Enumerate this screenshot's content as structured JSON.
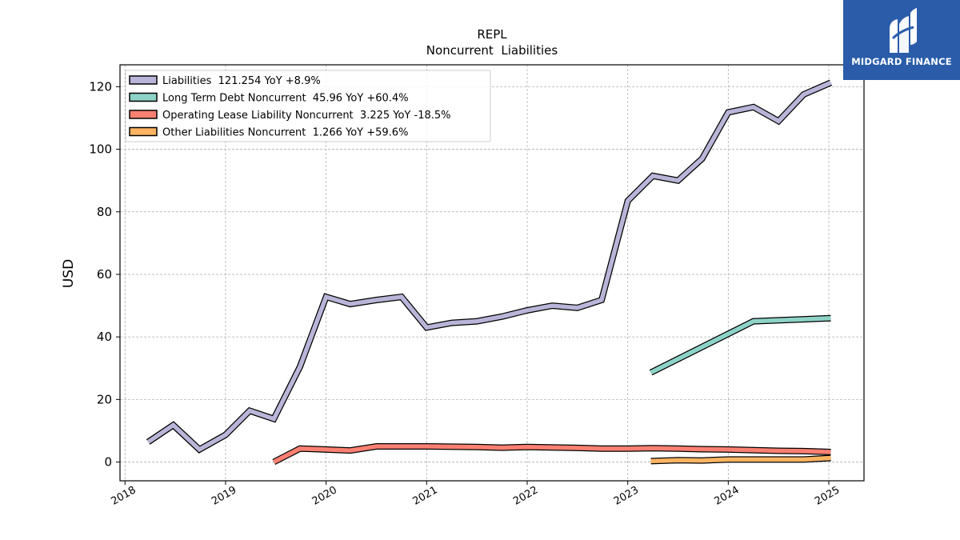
{
  "chart_data": {
    "type": "line",
    "title": "REPL",
    "subtitle": "Noncurrent  Liabilities",
    "ylabel": "USD",
    "xlabel": "",
    "xlim": [
      2017.95,
      2025.35
    ],
    "ylim": [
      -6,
      127
    ],
    "yticks": [
      0,
      20,
      40,
      60,
      80,
      100,
      120
    ],
    "xticks": [
      2018,
      2019,
      2020,
      2021,
      2022,
      2023,
      2024,
      2025
    ],
    "grid": true,
    "legend_position": "top-left",
    "series": [
      {
        "name": "Liabilities  121.254 YoY +8.9%",
        "color": "#b8b5d8",
        "points": [
          [
            2018.23,
            6.4
          ],
          [
            2018.48,
            11.8
          ],
          [
            2018.74,
            4.0
          ],
          [
            2019.0,
            8.7
          ],
          [
            2019.24,
            16.4
          ],
          [
            2019.48,
            13.8
          ],
          [
            2019.74,
            30.5
          ],
          [
            2020.0,
            52.8
          ],
          [
            2020.24,
            50.5
          ],
          [
            2020.5,
            51.8
          ],
          [
            2020.75,
            52.8
          ],
          [
            2021.0,
            43.0
          ],
          [
            2021.25,
            44.5
          ],
          [
            2021.5,
            45.0
          ],
          [
            2021.75,
            46.5
          ],
          [
            2022.0,
            48.5
          ],
          [
            2022.25,
            50.0
          ],
          [
            2022.5,
            49.3
          ],
          [
            2022.74,
            51.8
          ],
          [
            2023.0,
            83.5
          ],
          [
            2023.25,
            91.5
          ],
          [
            2023.5,
            90.0
          ],
          [
            2023.74,
            97.0
          ],
          [
            2024.0,
            111.8
          ],
          [
            2024.25,
            113.5
          ],
          [
            2024.5,
            109.0
          ],
          [
            2024.75,
            117.5
          ],
          [
            2025.02,
            121.3
          ]
        ]
      },
      {
        "name": "Long Term Debt Noncurrent  45.96 YoY +60.4%",
        "color": "#8dd3c7",
        "points": [
          [
            2023.23,
            28.6
          ],
          [
            2024.25,
            45.0
          ],
          [
            2025.02,
            46.0
          ]
        ]
      },
      {
        "name": "Operating Lease Liability Noncurrent  3.225 YoY -18.5%",
        "color": "#fb8072",
        "points": [
          [
            2019.48,
            0.0
          ],
          [
            2019.74,
            4.3
          ],
          [
            2020.0,
            4.0
          ],
          [
            2020.24,
            3.7
          ],
          [
            2020.5,
            5.0
          ],
          [
            2021.0,
            5.0
          ],
          [
            2021.5,
            4.8
          ],
          [
            2021.75,
            4.6
          ],
          [
            2022.0,
            4.8
          ],
          [
            2022.5,
            4.5
          ],
          [
            2022.74,
            4.3
          ],
          [
            2023.0,
            4.3
          ],
          [
            2023.25,
            4.4
          ],
          [
            2023.5,
            4.3
          ],
          [
            2023.74,
            4.1
          ],
          [
            2024.0,
            4.0
          ],
          [
            2024.5,
            3.6
          ],
          [
            2024.75,
            3.5
          ],
          [
            2025.02,
            3.2
          ]
        ]
      },
      {
        "name": "Other Liabilities Noncurrent  1.266 YoY +59.6%",
        "color": "#fdb462",
        "points": [
          [
            2023.23,
            0.3
          ],
          [
            2023.5,
            0.6
          ],
          [
            2023.74,
            0.5
          ],
          [
            2024.0,
            0.8
          ],
          [
            2024.5,
            0.8
          ],
          [
            2024.75,
            0.8
          ],
          [
            2025.02,
            1.3
          ]
        ]
      }
    ]
  },
  "logo": {
    "text": "MIDGARD FINANCE",
    "color": "#2a5caa"
  }
}
